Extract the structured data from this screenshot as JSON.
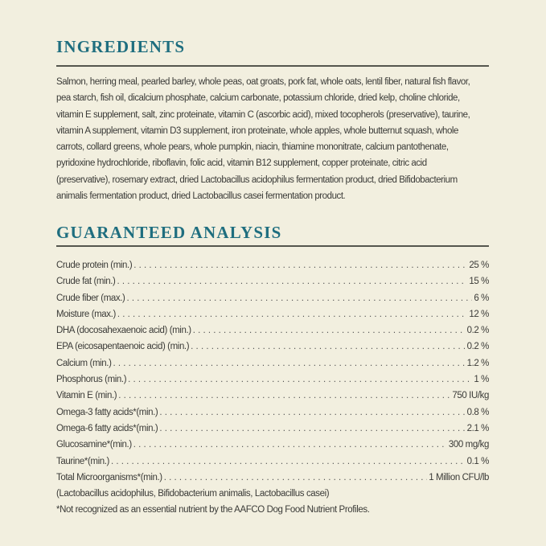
{
  "ingredients": {
    "title": "INGREDIENTS",
    "lines": [
      "Salmon, herring meal, pearled barley, whole peas, oat groats, pork fat, whole oats, lentil fiber, natural fish flavor,",
      "pea starch, fish oil, dicalcium phosphate, calcium carbonate, potassium chloride, dried kelp, choline chloride,",
      "vitamin E supplement, salt, zinc proteinate, vitamin C (ascorbic acid), mixed tocopherols (preservative), taurine,",
      "vitamin A supplement, vitamin D3 supplement, iron proteinate, whole apples, whole butternut squash, whole",
      "carrots, collard greens, whole pears, whole pumpkin, niacin, thiamine mononitrate, calcium pantothenate,",
      "pyridoxine hydrochloride, riboflavin, folic acid, vitamin B12 supplement, copper proteinate, citric acid",
      "(preservative), rosemary extract, dried Lactobacillus acidophilus fermentation product, dried Bifidobacterium",
      "animalis fermentation product, dried Lactobacillus casei fermentation product."
    ]
  },
  "analysis": {
    "title": "GUARANTEED ANALYSIS",
    "rows": [
      {
        "label": "Crude protein (min.)",
        "value": "25 %"
      },
      {
        "label": "Crude fat (min.)",
        "value": "15 %"
      },
      {
        "label": "Crude fiber (max.)",
        "value": "6 %"
      },
      {
        "label": "Moisture (max.)",
        "value": "12 %"
      },
      {
        "label": "DHA (docosahexaenoic acid) (min.)",
        "value": "0.2 %"
      },
      {
        "label": "EPA (eicosapentaenoic acid) (min.)",
        "value": "0.2 %"
      },
      {
        "label": "Calcium (min.)",
        "value": "1.2 %"
      },
      {
        "label": "Phosphorus (min.)",
        "value": "1 %"
      },
      {
        "label": "Vitamin E (min.)",
        "value": "750 IU/kg"
      },
      {
        "label": "Omega-3 fatty acids*(min.)",
        "value": "0.8 %"
      },
      {
        "label": "Omega-6 fatty acids*(min.)",
        "value": "2.1 %"
      },
      {
        "label": "Glucosamine*(min.)",
        "value": "300 mg/kg"
      },
      {
        "label": "Taurine*(min.)",
        "value": "0.1 %"
      },
      {
        "label": "Total Microorganisms*(min.)",
        "value": "1 Million CFU/lb"
      }
    ],
    "microorganisms_note": "(Lactobacillus acidophilus, Bifidobacterium animalis, Lactobacillus casei)",
    "footnote": "*Not recognized as an essential nutrient by the AAFCO Dog Food Nutrient Profiles."
  },
  "colors": {
    "heading": "#1f6e7f",
    "background": "#f2efdf",
    "rule": "#55564e"
  }
}
